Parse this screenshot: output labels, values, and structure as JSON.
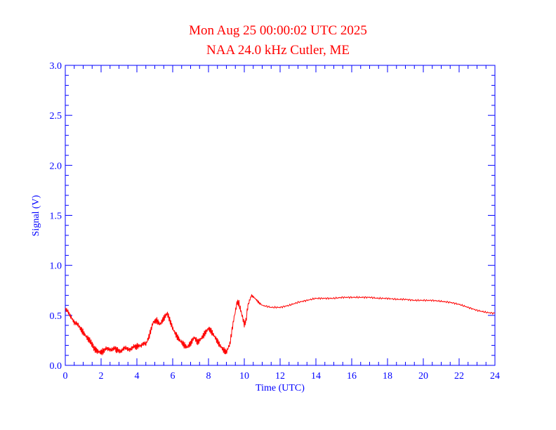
{
  "chart_data": {
    "type": "line",
    "title": "Mon Aug 25 00:00:02 UTC 2025",
    "subtitle": "NAA 24.0 kHz Cutler, ME",
    "xlabel": "Time (UTC)",
    "ylabel": "Signal (V)",
    "xlim": [
      0,
      24
    ],
    "ylim": [
      0,
      3.0
    ],
    "x_ticks": [
      "0",
      "2",
      "4",
      "6",
      "8",
      "10",
      "12",
      "14",
      "16",
      "18",
      "20",
      "22",
      "24"
    ],
    "y_ticks": [
      "0.0",
      "0.5",
      "1.0",
      "1.5",
      "2.0",
      "2.5",
      "3.0"
    ],
    "grid": false,
    "colors": {
      "line": "#ff0000",
      "axes": "#0000ff",
      "title": "#ff0000"
    },
    "series": [
      {
        "x": [
          0,
          0.3,
          0.5,
          0.8,
          1.0,
          1.2,
          1.4,
          1.5,
          1.6,
          1.8,
          2.0,
          2.2,
          2.5,
          2.8,
          3.0,
          3.3,
          3.6,
          3.9,
          4.0,
          4.2,
          4.5,
          4.7,
          4.9,
          5.1,
          5.3,
          5.5,
          5.7,
          5.8,
          6.0,
          6.2,
          6.4,
          6.6,
          6.8,
          7.0,
          7.2,
          7.4,
          7.6,
          7.8,
          8.0,
          8.2,
          8.4,
          8.6,
          8.8,
          9.0,
          9.2,
          9.4,
          9.6,
          9.7,
          9.8,
          10.0,
          10.1,
          10.2,
          10.4,
          10.6,
          10.8,
          11.0,
          11.5,
          12.0,
          12.5,
          13.0,
          13.5,
          14.0,
          14.5,
          15.0,
          15.5,
          16.0,
          16.5,
          17.0,
          17.5,
          18.0,
          18.5,
          19.0,
          19.5,
          20.0,
          20.5,
          21.0,
          21.5,
          22.0,
          22.5,
          23.0,
          23.5,
          24.0
        ],
        "y": [
          0.56,
          0.49,
          0.43,
          0.38,
          0.33,
          0.28,
          0.24,
          0.21,
          0.17,
          0.14,
          0.13,
          0.15,
          0.17,
          0.16,
          0.15,
          0.16,
          0.17,
          0.18,
          0.19,
          0.2,
          0.21,
          0.3,
          0.43,
          0.45,
          0.41,
          0.47,
          0.52,
          0.47,
          0.37,
          0.3,
          0.25,
          0.21,
          0.18,
          0.22,
          0.28,
          0.23,
          0.27,
          0.32,
          0.37,
          0.33,
          0.27,
          0.21,
          0.16,
          0.13,
          0.22,
          0.45,
          0.63,
          0.62,
          0.55,
          0.41,
          0.45,
          0.6,
          0.7,
          0.67,
          0.63,
          0.6,
          0.58,
          0.58,
          0.6,
          0.63,
          0.65,
          0.67,
          0.67,
          0.67,
          0.68,
          0.68,
          0.68,
          0.68,
          0.67,
          0.67,
          0.66,
          0.66,
          0.65,
          0.65,
          0.65,
          0.64,
          0.63,
          0.61,
          0.58,
          0.55,
          0.53,
          0.52
        ]
      }
    ]
  }
}
